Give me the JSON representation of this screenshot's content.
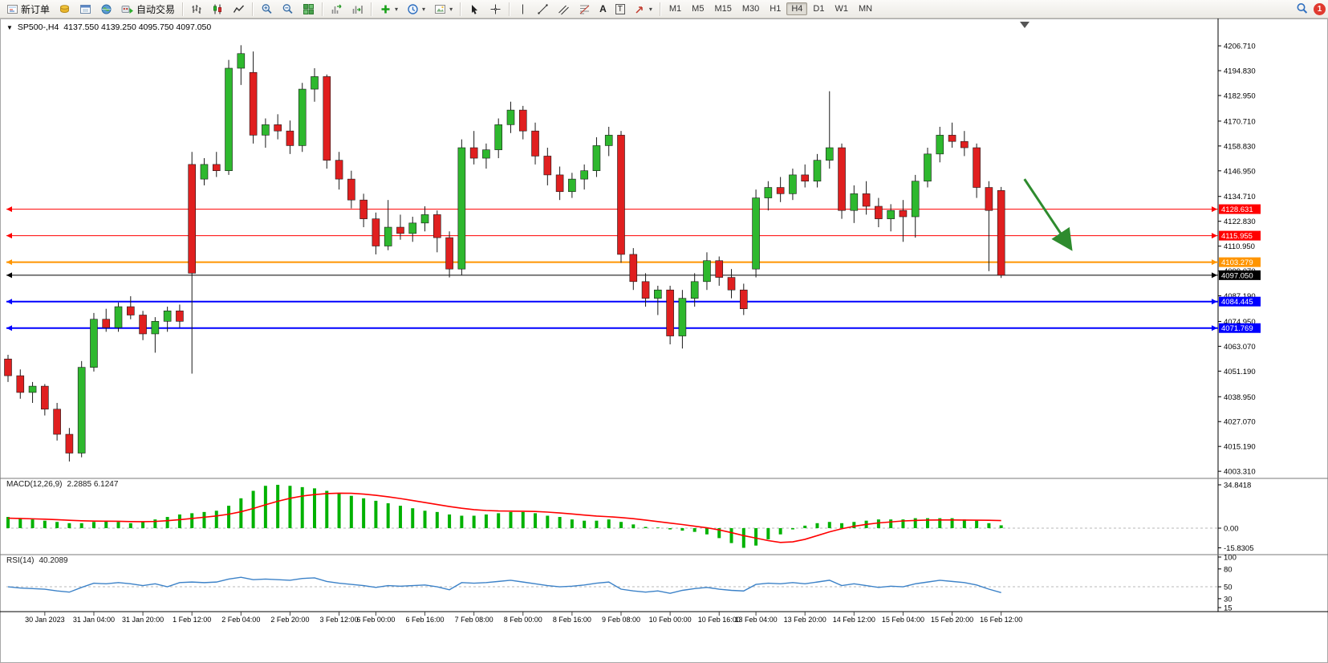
{
  "toolbar": {
    "new_order_label": "新订单",
    "autotrading_label": "自动交易",
    "timeframes": [
      "M1",
      "M5",
      "M15",
      "M30",
      "H1",
      "H4",
      "D1",
      "W1",
      "MN"
    ],
    "active_timeframe": "H4",
    "notification_count": "1",
    "glyphs": {
      "dropdown": "▾",
      "text_tool": "A",
      "label_tool": "T",
      "title_dropdown": "▼"
    }
  },
  "chart": {
    "symbol_period": "SP500-,H4",
    "ohlc_values": "4137.550 4139.250 4095.750 4097.050",
    "dropdown_glyph": "▼"
  },
  "colors": {
    "up": "#2eb82e",
    "down": "#e01f1f",
    "wick": "#1a1a1a",
    "macd_hist": "#00b200",
    "macd_signal": "#ff0000",
    "rsi": "#3c82c8",
    "axis_text": "#000000"
  },
  "chart_data": {
    "type": "candlestick",
    "symbol": "SP500-",
    "period": "H4",
    "ohlc_display": {
      "open": "4137.550",
      "high": "4139.250",
      "low": "4095.750",
      "close": "4097.050"
    },
    "price_axis": [
      4206.71,
      4194.83,
      4182.95,
      4170.71,
      4158.83,
      4146.95,
      4134.71,
      4122.83,
      4110.95,
      4099.07,
      4087.19,
      4074.95,
      4063.07,
      4051.19,
      4038.95,
      4027.07,
      4015.19,
      4003.31
    ],
    "candles": [
      [
        4057,
        4059,
        4046,
        4049
      ],
      [
        4049,
        4052,
        4038,
        4041
      ],
      [
        4041,
        4046,
        4036,
        4044
      ],
      [
        4044,
        4045,
        4030,
        4033
      ],
      [
        4033,
        4036,
        4018,
        4021
      ],
      [
        4021,
        4024,
        4008,
        4012
      ],
      [
        4012,
        4056,
        4010,
        4053
      ],
      [
        4053,
        4079,
        4051,
        4076
      ],
      [
        4076,
        4081,
        4070,
        4072
      ],
      [
        4072,
        4084,
        4070,
        4082
      ],
      [
        4082,
        4087,
        4076,
        4078
      ],
      [
        4078,
        4080,
        4066,
        4069
      ],
      [
        4069,
        4077,
        4060,
        4075
      ],
      [
        4075,
        4082,
        4070,
        4080
      ],
      [
        4080,
        4083,
        4072,
        4075
      ],
      [
        4150,
        4156,
        4050,
        4098
      ],
      [
        4143,
        4153,
        4140,
        4150
      ],
      [
        4150,
        4156,
        4144,
        4147
      ],
      [
        4147,
        4200,
        4145,
        4196
      ],
      [
        4196,
        4207,
        4188,
        4203
      ],
      [
        4194,
        4204,
        4160,
        4164
      ],
      [
        4164,
        4172,
        4158,
        4169
      ],
      [
        4169,
        4174,
        4162,
        4166
      ],
      [
        4166,
        4171,
        4155,
        4159
      ],
      [
        4159,
        4189,
        4156,
        4186
      ],
      [
        4186,
        4196,
        4180,
        4192
      ],
      [
        4192,
        4193,
        4148,
        4152
      ],
      [
        4152,
        4156,
        4138,
        4143
      ],
      [
        4143,
        4147,
        4129,
        4133
      ],
      [
        4133,
        4136,
        4120,
        4124
      ],
      [
        4124,
        4127,
        4107,
        4111
      ],
      [
        4111,
        4133,
        4109,
        4120
      ],
      [
        4120,
        4126,
        4114,
        4117
      ],
      [
        4117,
        4125,
        4113,
        4122
      ],
      [
        4122,
        4130,
        4118,
        4126
      ],
      [
        4126,
        4128,
        4108,
        4115
      ],
      [
        4115,
        4118,
        4096,
        4100
      ],
      [
        4100,
        4162,
        4097,
        4158
      ],
      [
        4158,
        4166,
        4150,
        4153
      ],
      [
        4153,
        4160,
        4148,
        4157
      ],
      [
        4157,
        4172,
        4153,
        4169
      ],
      [
        4169,
        4180,
        4165,
        4176
      ],
      [
        4176,
        4178,
        4162,
        4166
      ],
      [
        4166,
        4170,
        4150,
        4154
      ],
      [
        4154,
        4158,
        4140,
        4145
      ],
      [
        4145,
        4149,
        4133,
        4137
      ],
      [
        4137,
        4146,
        4134,
        4143
      ],
      [
        4143,
        4150,
        4138,
        4147
      ],
      [
        4147,
        4163,
        4144,
        4159
      ],
      [
        4159,
        4168,
        4154,
        4164
      ],
      [
        4164,
        4166,
        4103,
        4107
      ],
      [
        4107,
        4110,
        4090,
        4094
      ],
      [
        4094,
        4098,
        4082,
        4086
      ],
      [
        4086,
        4092,
        4078,
        4090
      ],
      [
        4090,
        4092,
        4064,
        4068
      ],
      [
        4068,
        4090,
        4062,
        4086
      ],
      [
        4086,
        4098,
        4082,
        4094
      ],
      [
        4094,
        4108,
        4090,
        4104
      ],
      [
        4104,
        4106,
        4092,
        4096
      ],
      [
        4096,
        4100,
        4086,
        4090
      ],
      [
        4090,
        4093,
        4078,
        4081
      ],
      [
        4100,
        4138,
        4096,
        4134
      ],
      [
        4134,
        4142,
        4128,
        4139
      ],
      [
        4139,
        4144,
        4132,
        4136
      ],
      [
        4136,
        4148,
        4133,
        4145
      ],
      [
        4145,
        4150,
        4139,
        4142
      ],
      [
        4142,
        4155,
        4139,
        4152
      ],
      [
        4152,
        4185,
        4148,
        4158
      ],
      [
        4158,
        4160,
        4124,
        4128
      ],
      [
        4128,
        4140,
        4122,
        4136
      ],
      [
        4136,
        4142,
        4126,
        4130
      ],
      [
        4130,
        4134,
        4120,
        4124
      ],
      [
        4124,
        4131,
        4118,
        4128
      ],
      [
        4128,
        4133,
        4113,
        4125
      ],
      [
        4125,
        4145,
        4115,
        4142
      ],
      [
        4142,
        4158,
        4139,
        4155
      ],
      [
        4155,
        4168,
        4151,
        4164
      ],
      [
        4164,
        4170,
        4158,
        4161
      ],
      [
        4161,
        4166,
        4154,
        4158
      ],
      [
        4158,
        4160,
        4134,
        4139
      ],
      [
        4139,
        4142,
        4099,
        4128
      ],
      [
        4137.55,
        4139.25,
        4095.75,
        4097.05
      ]
    ],
    "x_labels": [
      {
        "bar": 3,
        "text": "30 Jan 2023"
      },
      {
        "bar": 7,
        "text": "31 Jan 04:00"
      },
      {
        "bar": 11,
        "text": "31 Jan 20:00"
      },
      {
        "bar": 15,
        "text": "1 Feb 12:00"
      },
      {
        "bar": 19,
        "text": "2 Feb 04:00"
      },
      {
        "bar": 23,
        "text": "2 Feb 20:00"
      },
      {
        "bar": 27,
        "text": "3 Feb 12:00"
      },
      {
        "bar": 30,
        "text": "6 Feb 00:00"
      },
      {
        "bar": 34,
        "text": "6 Feb 16:00"
      },
      {
        "bar": 38,
        "text": "7 Feb 08:00"
      },
      {
        "bar": 42,
        "text": "8 Feb 00:00"
      },
      {
        "bar": 46,
        "text": "8 Feb 16:00"
      },
      {
        "bar": 50,
        "text": "9 Feb 08:00"
      },
      {
        "bar": 54,
        "text": "10 Feb 00:00"
      },
      {
        "bar": 58,
        "text": "10 Feb 16:00"
      },
      {
        "bar": 61,
        "text": "13 Feb 04:00"
      },
      {
        "bar": 65,
        "text": "13 Feb 20:00"
      },
      {
        "bar": 69,
        "text": "14 Feb 12:00"
      },
      {
        "bar": 73,
        "text": "15 Feb 04:00"
      },
      {
        "bar": 77,
        "text": "15 Feb 20:00"
      },
      {
        "bar": 81,
        "text": "16 Feb 12:00"
      }
    ],
    "hlines": [
      {
        "price": 4128.631,
        "label": "4128.631",
        "color": "#ff0000",
        "width": 1
      },
      {
        "price": 4115.955,
        "label": "4115.955",
        "color": "#ff0000",
        "width": 1
      },
      {
        "price": 4103.279,
        "label": "4103.279",
        "color": "#ff9500",
        "width": 2
      },
      {
        "price": 4097.05,
        "label": "4097.050",
        "color": "#000000",
        "width": 1
      },
      {
        "price": 4084.445,
        "label": "4084.445",
        "color": "#0000ff",
        "width": 2
      },
      {
        "price": 4071.769,
        "label": "4071.769",
        "color": "#0000ff",
        "width": 2
      }
    ],
    "arrow": {
      "from": {
        "bar": 82.9,
        "price": 4143
      },
      "to": {
        "bar": 86.6,
        "price": 4110.5
      },
      "color": "#2e8b2e"
    },
    "macd": {
      "name": "MACD(12,26,9)",
      "values_text": "2.2885 6.1247",
      "axis": [
        {
          "v": 34.8418,
          "t": "34.8418"
        },
        {
          "v": 0,
          "t": "0.00"
        },
        {
          "v": -15.8305,
          "t": "-15.8305"
        }
      ],
      "hist": [
        9,
        8,
        7,
        6,
        5,
        4,
        4,
        5,
        6,
        5,
        4,
        5,
        7,
        9,
        11,
        12,
        13,
        14,
        18,
        24,
        30,
        34,
        34.8,
        34,
        33,
        32,
        30,
        28,
        26,
        24,
        22,
        20,
        18,
        16,
        14,
        13,
        11,
        10,
        10,
        11,
        12,
        13,
        13,
        12,
        10,
        9,
        7,
        6,
        6,
        7,
        5,
        3,
        1,
        0.5,
        -1,
        -2,
        -3,
        -5,
        -8,
        -12,
        -15.8,
        -14,
        -9,
        -5,
        -1,
        2,
        4,
        5,
        4,
        5,
        6,
        7,
        7,
        7,
        8,
        8,
        8,
        8,
        7,
        6,
        4,
        2.29
      ],
      "signal": [
        8,
        7.8,
        7.5,
        7.2,
        6.8,
        6.3,
        5.9,
        5.7,
        5.6,
        5.5,
        5.3,
        5.2,
        5.4,
        6,
        6.8,
        7.8,
        8.8,
        9.8,
        11.2,
        13.2,
        15.8,
        18.8,
        21.6,
        24,
        25.8,
        27,
        27.8,
        28.1,
        28,
        27.4,
        26.4,
        25.2,
        23.8,
        22.2,
        20.6,
        19,
        17.4,
        16,
        14.9,
        14.2,
        13.8,
        13.7,
        13.6,
        13.4,
        12.9,
        12.2,
        11.4,
        10.5,
        9.7,
        9.2,
        8.5,
        7.6,
        6.5,
        5.3,
        4.1,
        2.9,
        1.6,
        0.3,
        -1.4,
        -3.6,
        -6,
        -8,
        -10,
        -11.5,
        -11,
        -9,
        -6,
        -3,
        -0.5,
        1.5,
        3,
        4.2,
        5,
        5.8,
        6.2,
        6.5,
        6.6,
        6.6,
        6.5,
        6.4,
        6.3,
        6.12
      ]
    },
    "rsi": {
      "name": "RSI(14)",
      "value_text": "40.2089",
      "axis": [
        100,
        80,
        50,
        30,
        15
      ],
      "level": 50,
      "values": [
        50,
        48,
        47,
        46,
        43,
        41,
        49,
        56,
        55,
        57,
        55,
        52,
        55,
        50,
        57,
        58,
        57,
        58,
        63,
        66,
        62,
        63,
        62,
        61,
        64,
        65,
        59,
        56,
        54,
        52,
        49,
        52,
        51,
        52,
        53,
        50,
        45,
        57,
        56,
        57,
        59,
        61,
        58,
        55,
        52,
        50,
        51,
        53,
        56,
        58,
        46,
        43,
        41,
        43,
        39,
        44,
        47,
        49,
        46,
        44,
        43,
        54,
        56,
        55,
        57,
        55,
        58,
        61,
        52,
        55,
        52,
        49,
        51,
        50,
        55,
        58,
        61,
        59,
        57,
        53,
        46,
        40.21
      ]
    }
  }
}
